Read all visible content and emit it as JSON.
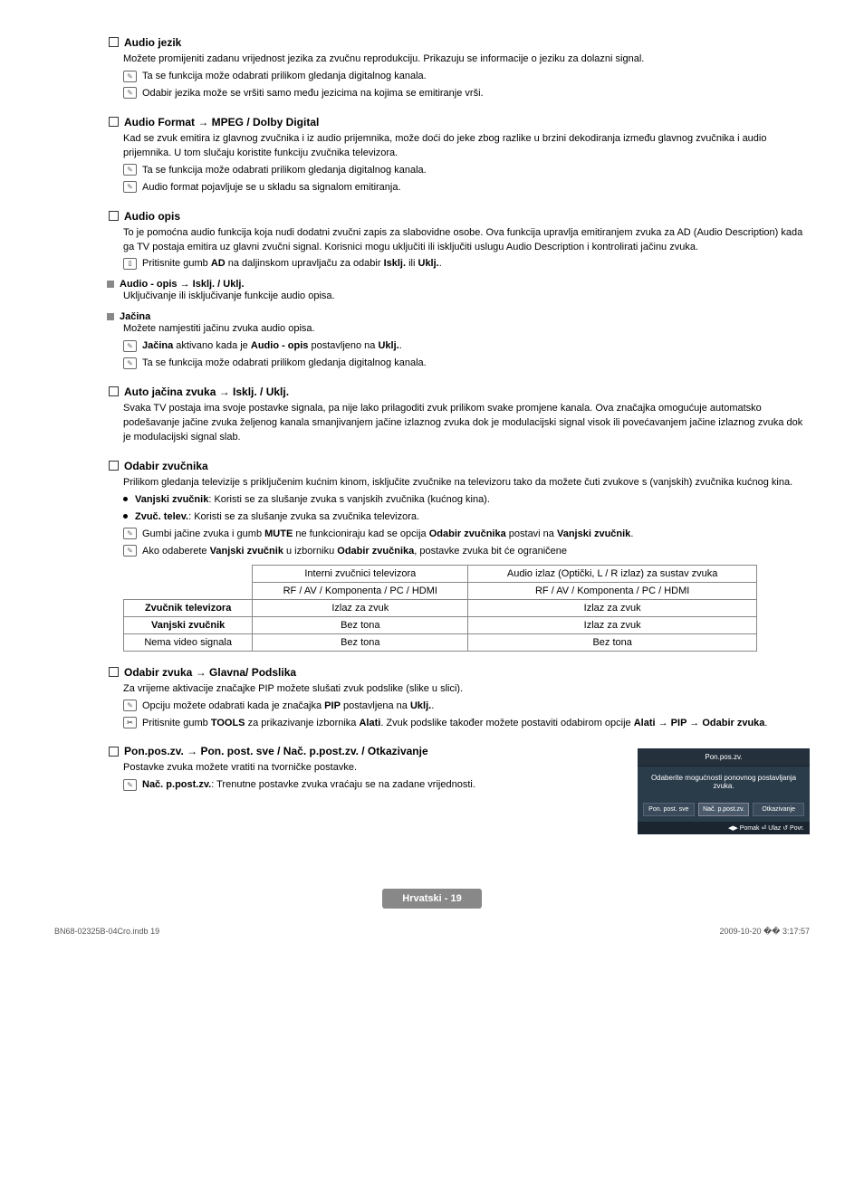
{
  "sections": {
    "audio_jezik": {
      "title": "Audio jezik",
      "body": "Možete promijeniti zadanu vrijednost jezika za zvučnu reprodukciju. Prikazuju se informacije o jeziku za dolazni signal.",
      "note1": "Ta se funkcija može odabrati prilikom gledanja digitalnog kanala.",
      "note2": "Odabir jezika može se vršiti samo među jezicima na kojima se emitiranje vrši."
    },
    "audio_format": {
      "title": "Audio Format → MPEG / Dolby Digital",
      "body": "Kad se zvuk emitira iz glavnog zvučnika i iz audio prijemnika, može doći do jeke zbog razlike u brzini dekodiranja između glavnog zvučnika i audio prijemnika. U tom slučaju koristite funkciju zvučnika televizora.",
      "note1": "Ta se funkcija može odabrati prilikom gledanja digitalnog kanala.",
      "note2": "Audio format pojavljuje se u skladu sa signalom emitiranja."
    },
    "audio_opis": {
      "title": "Audio opis",
      "body": "To je pomoćna audio funkcija koja nudi dodatni zvučni zapis za slabovidne osobe. Ova funkcija upravlja emitiranjem zvuka za AD (Audio Description) kada ga TV postaja emitira uz glavni zvučni signal. Korisnici mogu uključiti ili isključiti uslugu Audio Description i kontrolirati jačinu zvuka.",
      "remote_pre": "Pritisnite gumb ",
      "remote_bold": "AD",
      "remote_post": " na daljinskom upravljaču za odabir ",
      "remote_b2": "Isklj.",
      "remote_mid": " ili ",
      "remote_b3": "Uklj.",
      "remote_end": ".",
      "sub1_title": "Audio - opis → Isklj. / Uklj.",
      "sub1_body": "Uključivanje ili isključivanje funkcije audio opisa.",
      "sub2_title": "Jačina",
      "sub2_body": "Možete namjestiti jačinu zvuka audio opisa.",
      "sub2_note1_b1": "Jačina",
      "sub2_note1_mid": " aktivano kada je ",
      "sub2_note1_b2": "Audio - opis",
      "sub2_note1_post": " postavljeno na ",
      "sub2_note1_b3": "Uklj.",
      "sub2_note1_end": ".",
      "sub2_note2": "Ta se funkcija može odabrati prilikom gledanja digitalnog kanala."
    },
    "auto_jacina": {
      "title": "Auto jačina zvuka → Isklj. / Uklj.",
      "body": "Svaka TV postaja ima svoje postavke signala, pa nije lako prilagoditi zvuk prilikom svake promjene kanala. Ova značajka omogućuje automatsko podešavanje jačine zvuka željenog kanala smanjivanjem jačine izlaznog zvuka dok je modulacijski signal visok ili povećavanjem jačine izlaznog zvuka dok je modulacijski signal slab."
    },
    "odabir_zvucnika": {
      "title": "Odabir zvučnika",
      "body": "Prilikom gledanja televizije s priključenim kućnim kinom, isključite zvučnike na televizoru tako da možete čuti zvukove s (vanjskih) zvučnika kućnog kina.",
      "b1_b": "Vanjski zvučnik",
      "b1_t": ": Koristi se za slušanje zvuka s vanjskih zvučnika (kućnog kina).",
      "b2_b": "Zvuč. telev.",
      "b2_t": ": Koristi se za slušanje zvuka sa zvučnika televizora.",
      "n1_pre": "Gumbi jačine zvuka i gumb ",
      "n1_b1": "MUTE",
      "n1_mid": " ne funkcioniraju kad se opcija ",
      "n1_b2": "Odabir zvučnika",
      "n1_post": " postavi na ",
      "n1_b3": "Vanjski zvučnik",
      "n1_end": ".",
      "n2_pre": "Ako odaberete ",
      "n2_b1": "Vanjski zvučnik",
      "n2_mid": " u izborniku ",
      "n2_b2": "Odabir zvučnika",
      "n2_post": ", postavke zvuka bit će ograničene"
    },
    "table": {
      "h1": "Interni zvučnici televizora",
      "h2": "Audio izlaz (Optički, L / R izlaz) za sustav zvuka",
      "sub": "RF / AV / Komponenta / PC / HDMI",
      "r1": "Zvučnik televizora",
      "r1c1": "Izlaz za zvuk",
      "r1c2": "Izlaz za zvuk",
      "r2": "Vanjski zvučnik",
      "r2c1": "Bez tona",
      "r2c2": "Izlaz za zvuk",
      "r3": "Nema video signala",
      "r3c1": "Bez tona",
      "r3c2": "Bez tona"
    },
    "odabir_zvuka": {
      "title": "Odabir zvuka → Glavna/ Podslika",
      "body": "Za vrijeme aktivacije značajke PIP možete slušati zvuk podslike (slike u slici).",
      "n1_pre": "Opciju možete odabrati kada je značajka ",
      "n1_b": "PIP",
      "n1_post": " postavljena na ",
      "n1_b2": "Uklj.",
      "n1_end": ".",
      "t1_pre": "Pritisnite gumb ",
      "t1_b1": "TOOLS",
      "t1_mid": " za prikazivanje izbornika ",
      "t1_b2": "Alati",
      "t1_post": ". Zvuk podslike također možete postaviti odabirom opcije ",
      "t1_b3": "Alati → PIP → Odabir zvuka",
      "t1_end": "."
    },
    "pon_pos": {
      "title": "Pon.pos.zv. → Pon. post. sve / Nač. p.post.zv. / Otkazivanje",
      "body": "Postavke zvuka možete vratiti na tvorničke postavke.",
      "n_b": "Nač. p.post.zv.",
      "n_t": ": Trenutne postavke zvuka vraćaju se na zadane vrijednosti."
    }
  },
  "osd": {
    "title": "Pon.pos.zv.",
    "body": "Odaberite mogućnosti ponovnog postavljanja zvuka.",
    "btn1": "Pon. post. sve",
    "btn2": "Nač. p.post.zv.",
    "btn3": "Otkazivanje",
    "foot": "◀▶ Pomak   ⏎ Ulaz   ↺ Povr."
  },
  "footer": {
    "badge": "Hrvatski - 19",
    "left": "BN68-02325B-04Cro.indb   19",
    "right": "2009-10-20   �� 3:17:57"
  }
}
